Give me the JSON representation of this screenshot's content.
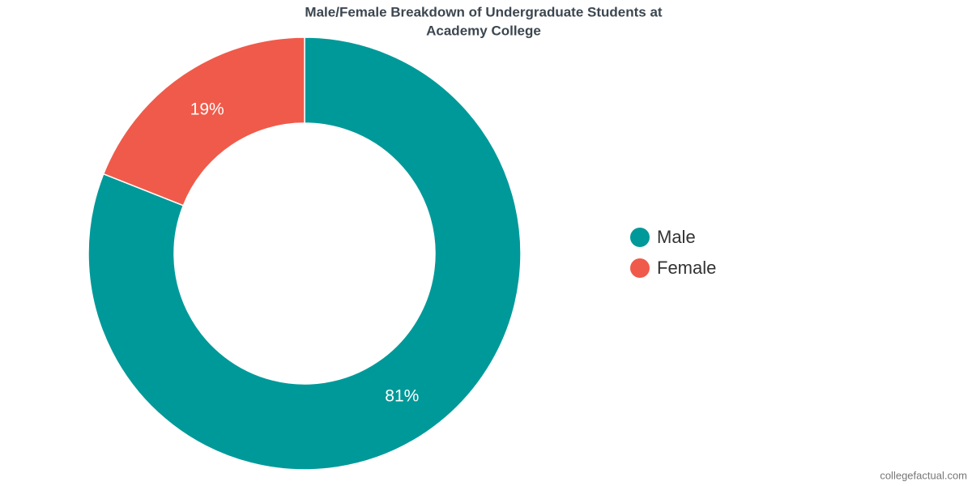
{
  "chart_data": {
    "type": "pie",
    "title": [
      "Male/Female Breakdown of Undergraduate Students at",
      "Academy College"
    ],
    "categories": [
      "Male",
      "Female"
    ],
    "values": [
      81,
      19
    ],
    "value_labels": [
      "81%",
      "19%"
    ],
    "colors": [
      "#009999",
      "#f05a4a"
    ],
    "source": "collegefactual.com"
  }
}
